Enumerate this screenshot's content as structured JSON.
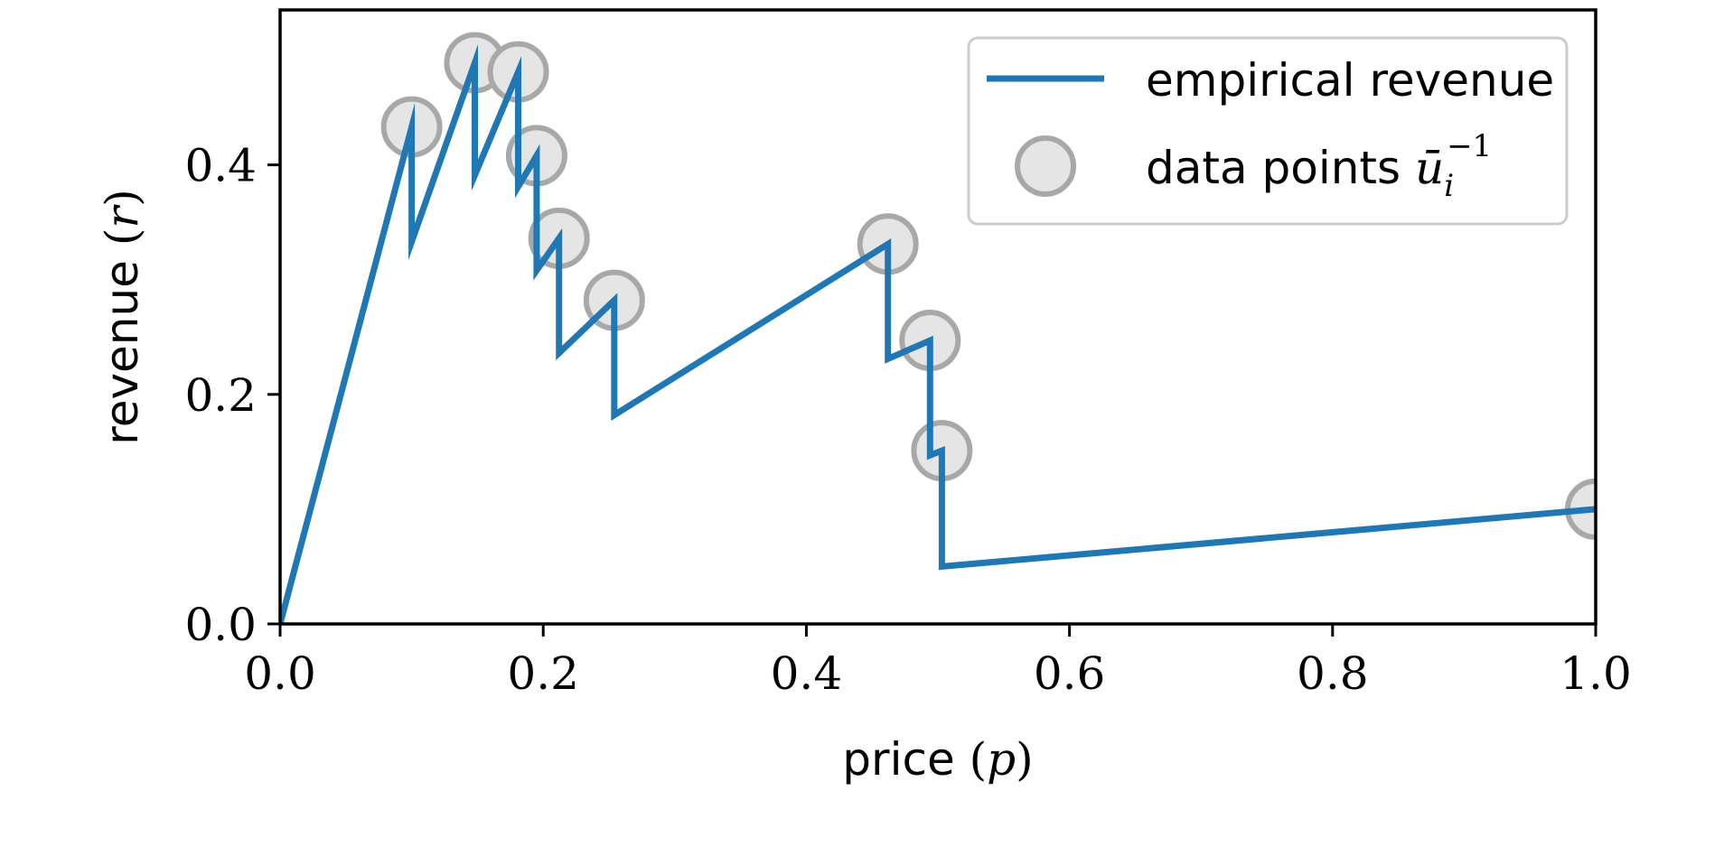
{
  "chart_data": {
    "type": "line",
    "xlabel": "price (p)",
    "ylabel": "revenue (r)",
    "xlim": [
      0.0,
      1.0
    ],
    "ylim": [
      0.0,
      0.535
    ],
    "xticks": [
      0.0,
      0.2,
      0.4,
      0.6,
      0.8,
      1.0
    ],
    "xtick_labels": [
      "0.0",
      "0.2",
      "0.4",
      "0.6",
      "0.8",
      "1.0"
    ],
    "yticks": [
      0.0,
      0.2,
      0.4
    ],
    "ytick_labels": [
      "0.0",
      "0.2",
      "0.4"
    ],
    "grid": false,
    "legend_position": "top-right",
    "series": [
      {
        "name": "empirical revenue",
        "kind": "line",
        "color": "#1f77b4",
        "x": [
          0.0,
          0.1,
          0.1,
          0.148,
          0.148,
          0.181,
          0.181,
          0.195,
          0.195,
          0.212,
          0.212,
          0.254,
          0.254,
          0.462,
          0.462,
          0.494,
          0.494,
          0.503,
          0.503,
          1.0
        ],
        "y": [
          0.0,
          0.433,
          0.333,
          0.489,
          0.391,
          0.481,
          0.381,
          0.408,
          0.308,
          0.336,
          0.236,
          0.282,
          0.182,
          0.331,
          0.231,
          0.247,
          0.147,
          0.151,
          0.05,
          0.1
        ]
      },
      {
        "name": "data points ū_i^{-1}",
        "kind": "scatter",
        "color": "#e5e5e5",
        "edge_color": "#a8a8a8",
        "x": [
          0.1,
          0.148,
          0.181,
          0.195,
          0.212,
          0.254,
          0.462,
          0.494,
          0.503,
          1.0
        ],
        "y": [
          0.433,
          0.489,
          0.481,
          0.408,
          0.336,
          0.282,
          0.331,
          0.247,
          0.151,
          0.1
        ]
      }
    ],
    "legend": {
      "line_label": "empirical revenue",
      "points_label_prefix": "data points ",
      "points_label_symbol": "ū",
      "points_label_sub": "i",
      "points_label_sup": "−1"
    }
  }
}
